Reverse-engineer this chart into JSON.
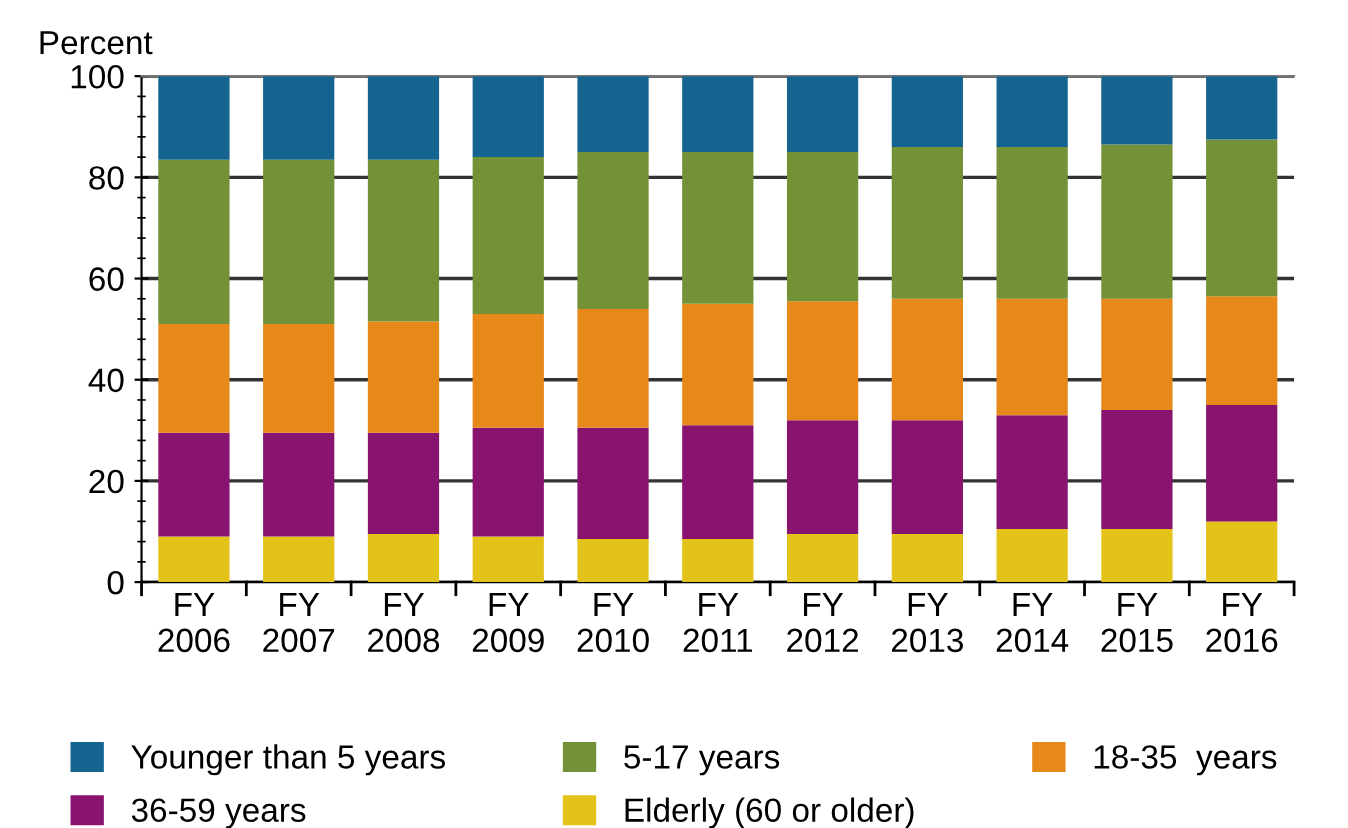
{
  "chart_data": {
    "type": "bar",
    "stacked": true,
    "ylabel": "Percent",
    "categories": [
      "FY\n2006",
      "FY\n2007",
      "FY\n2008",
      "FY\n2009",
      "FY\n2010",
      "FY\n2011",
      "FY\n2012",
      "FY\n2013",
      "FY\n2014",
      "FY\n2015",
      "FY\n2016"
    ],
    "series": [
      {
        "name": "Elderly (60 or older)",
        "color": "#e3c21a",
        "values": [
          9,
          9,
          9.5,
          9,
          8.5,
          8.5,
          9.5,
          9.5,
          10.5,
          10.5,
          12
        ]
      },
      {
        "name": "36-59 years",
        "color": "#881470",
        "values": [
          20.5,
          20.5,
          20,
          21.5,
          22,
          22.5,
          22.5,
          22.5,
          22.5,
          23.5,
          23
        ]
      },
      {
        "name": "18-35  years",
        "color": "#e6891a",
        "values": [
          21.5,
          21.5,
          22,
          22.5,
          23.5,
          24,
          23.5,
          24,
          23,
          22,
          21.5
        ]
      },
      {
        "name": "5-17 years",
        "color": "#739136",
        "values": [
          32.5,
          32.5,
          32,
          31,
          31,
          30,
          29.5,
          30,
          30,
          30.5,
          31
        ]
      },
      {
        "name": "Younger than 5 years",
        "color": "#156490",
        "values": [
          16.5,
          16.5,
          16.5,
          16,
          15,
          15,
          15,
          14,
          14,
          13.5,
          12.5
        ]
      }
    ],
    "ylim": [
      0,
      100
    ],
    "yticks": [
      0,
      20,
      40,
      60,
      80,
      100,
      {
        "value": 4,
        "label": null
      },
      {
        "value": 8,
        "label": null
      },
      {
        "value": 12,
        "label": null
      },
      {
        "value": 16,
        "label": null
      },
      {
        "value": 24,
        "label": null
      },
      {
        "value": 28,
        "label": null
      },
      {
        "value": 32,
        "label": null
      },
      {
        "value": 36,
        "label": null
      },
      {
        "value": 44,
        "label": null
      },
      {
        "value": 48,
        "label": null
      },
      {
        "value": 52,
        "label": null
      },
      {
        "value": 56,
        "label": null
      },
      {
        "value": 64,
        "label": null
      },
      {
        "value": 68,
        "label": null
      },
      {
        "value": 72,
        "label": null
      },
      {
        "value": 76,
        "label": null
      },
      {
        "value": 84,
        "label": null
      },
      {
        "value": 88,
        "label": null
      },
      {
        "value": 92,
        "label": null
      },
      {
        "value": 96,
        "label": null
      }
    ],
    "grid": "y",
    "legend": "bottom"
  }
}
